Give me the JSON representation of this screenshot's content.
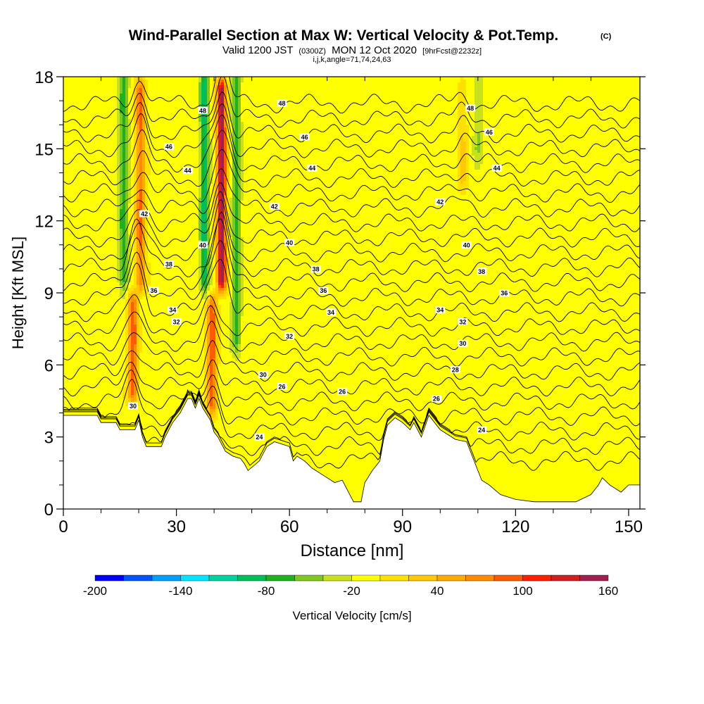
{
  "chart_data": {
    "type": "heatmap",
    "title": "Wind-Parallel Section at Max W: Vertical Velocity & Pot.Temp.",
    "title_mark": "(C)",
    "subtitle": {
      "prefix": "Valid 1200 JST",
      "utc": "(0300Z)",
      "date": "MON 12 Oct 2020",
      "forecast": "[9hrFcst@2232z]"
    },
    "subtitle2": "i,j,k,angle=71,74,24,63",
    "xlabel": "Distance [nm]",
    "ylabel": "Height [Kft MSL]",
    "xlim": [
      0,
      153
    ],
    "ylim": [
      0,
      18
    ],
    "xticks": [
      0,
      30,
      60,
      90,
      120,
      150
    ],
    "yticks": [
      0,
      3,
      6,
      9,
      12,
      15,
      18
    ],
    "grid": false,
    "colorbar": {
      "label": "Vertical Velocity [cm/s]",
      "placement": "bottom",
      "min": -200,
      "max": 160,
      "step": 20,
      "tick_labels": [
        "-200",
        "-140",
        "-80",
        "-20",
        "40",
        "100",
        "160"
      ],
      "colors": [
        "#0000ff",
        "#0055ff",
        "#00a0ff",
        "#00e6ff",
        "#00d2a0",
        "#00be5a",
        "#20b020",
        "#80c820",
        "#c8e01e",
        "#ffff00",
        "#ffe100",
        "#ffc800",
        "#ffaa00",
        "#ff8c00",
        "#ff5a00",
        "#ff1e00",
        "#d21e1e",
        "#a01e50",
        "#7a1e78"
      ]
    },
    "background_value": -10,
    "updraft_cores": [
      {
        "x": 18.5,
        "y_bottom": 4.3,
        "y_top": 9.1,
        "max_w": 100
      },
      {
        "x": 20.5,
        "y_bottom": 9.0,
        "y_top": 18.0,
        "max_w": 90
      },
      {
        "x": 39.5,
        "y_bottom": 3.8,
        "y_top": 9.0,
        "max_w": 100
      },
      {
        "x": 42.0,
        "y_bottom": 9.0,
        "y_top": 18.0,
        "max_w": 160
      },
      {
        "x": 106.0,
        "y_bottom": 13.0,
        "y_top": 18.0,
        "max_w": 30
      }
    ],
    "downdraft_zones": [
      {
        "x": 16.0,
        "y_bottom": 8.5,
        "y_top": 18.0,
        "min_w": -60
      },
      {
        "x": 37.5,
        "y_bottom": 8.5,
        "y_top": 18.0,
        "min_w": -80
      },
      {
        "x": 46.0,
        "y_bottom": 6.0,
        "y_top": 18.0,
        "min_w": -60
      },
      {
        "x": 110.0,
        "y_bottom": 14.0,
        "y_top": 18.0,
        "min_w": -30
      }
    ],
    "terrain_profile": {
      "x": [
        0,
        9,
        10,
        14,
        15,
        19,
        20,
        21,
        22,
        26,
        27,
        29,
        31,
        32,
        33,
        34,
        35,
        36,
        37,
        39,
        40,
        41,
        43,
        44,
        45,
        47,
        48,
        49,
        52,
        54,
        56,
        60,
        61,
        62,
        64,
        66,
        68,
        70,
        72,
        74,
        75,
        76,
        77,
        79,
        80,
        82,
        84,
        85,
        86,
        88,
        90,
        92,
        93,
        95,
        97,
        100,
        104,
        107,
        108,
        110,
        111,
        113,
        116,
        120,
        125,
        130,
        136,
        140,
        142,
        143,
        145,
        148,
        150,
        153
      ],
      "y": [
        3.9,
        3.9,
        3.6,
        3.6,
        3.3,
        3.3,
        3.7,
        3.0,
        2.6,
        2.6,
        3.0,
        3.6,
        4.0,
        4.3,
        4.6,
        4.6,
        4.2,
        4.6,
        4.2,
        3.7,
        3.2,
        3.0,
        2.4,
        2.3,
        2.2,
        2.1,
        1.9,
        1.6,
        2.0,
        2.6,
        2.8,
        2.6,
        2.0,
        2.2,
        2.0,
        1.7,
        1.5,
        1.3,
        1.1,
        1.2,
        0.9,
        0.6,
        0.3,
        0.3,
        1.1,
        1.6,
        2.0,
        2.9,
        3.5,
        3.8,
        3.6,
        3.3,
        3.6,
        3.0,
        3.9,
        3.3,
        2.9,
        2.8,
        2.4,
        1.6,
        1.2,
        1.0,
        0.6,
        0.4,
        0.3,
        0.3,
        0.3,
        0.6,
        1.0,
        1.3,
        1.0,
        0.7,
        1.0,
        1.0
      ]
    },
    "contours": {
      "field": "Potential Temperature",
      "levels": [
        24,
        25,
        26,
        27,
        28,
        29,
        30,
        31,
        32,
        33,
        34,
        35,
        36,
        37,
        38,
        39,
        40,
        41,
        42,
        43,
        44,
        45,
        46,
        47,
        48
      ],
      "labels": [
        {
          "text": "24",
          "x": 52.0,
          "y": 3.0
        },
        {
          "text": "24",
          "x": 111.0,
          "y": 3.3
        },
        {
          "text": "26",
          "x": 74.0,
          "y": 4.9
        },
        {
          "text": "26",
          "x": 58.0,
          "y": 5.1
        },
        {
          "text": "26",
          "x": 99.0,
          "y": 4.6
        },
        {
          "text": "28",
          "x": 104.0,
          "y": 5.8
        },
        {
          "text": "30",
          "x": 18.5,
          "y": 4.3
        },
        {
          "text": "30",
          "x": 53.0,
          "y": 5.6
        },
        {
          "text": "30",
          "x": 106.0,
          "y": 6.9
        },
        {
          "text": "32",
          "x": 30.0,
          "y": 7.8
        },
        {
          "text": "32",
          "x": 60.0,
          "y": 7.2
        },
        {
          "text": "32",
          "x": 106.0,
          "y": 7.8
        },
        {
          "text": "34",
          "x": 29.0,
          "y": 8.3
        },
        {
          "text": "34",
          "x": 71.0,
          "y": 8.2
        },
        {
          "text": "34",
          "x": 100.0,
          "y": 8.3
        },
        {
          "text": "36",
          "x": 24.0,
          "y": 9.1
        },
        {
          "text": "36",
          "x": 69.0,
          "y": 9.1
        },
        {
          "text": "36",
          "x": 117.0,
          "y": 9.0
        },
        {
          "text": "38",
          "x": 28.0,
          "y": 10.2
        },
        {
          "text": "38",
          "x": 67.0,
          "y": 10.0
        },
        {
          "text": "38",
          "x": 111.0,
          "y": 9.9
        },
        {
          "text": "40",
          "x": 37.0,
          "y": 11.0
        },
        {
          "text": "40",
          "x": 60.0,
          "y": 11.1
        },
        {
          "text": "40",
          "x": 107.0,
          "y": 11.0
        },
        {
          "text": "42",
          "x": 21.5,
          "y": 12.3
        },
        {
          "text": "42",
          "x": 56.0,
          "y": 12.6
        },
        {
          "text": "42",
          "x": 100.0,
          "y": 12.8
        },
        {
          "text": "44",
          "x": 33.0,
          "y": 14.1
        },
        {
          "text": "44",
          "x": 66.0,
          "y": 14.2
        },
        {
          "text": "44",
          "x": 115.0,
          "y": 14.2
        },
        {
          "text": "46",
          "x": 28.0,
          "y": 15.1
        },
        {
          "text": "46",
          "x": 64.0,
          "y": 15.5
        },
        {
          "text": "46",
          "x": 113.0,
          "y": 15.7
        },
        {
          "text": "48",
          "x": 37.0,
          "y": 16.6
        },
        {
          "text": "48",
          "x": 58.0,
          "y": 16.9
        },
        {
          "text": "48",
          "x": 108.0,
          "y": 16.7
        }
      ]
    }
  }
}
